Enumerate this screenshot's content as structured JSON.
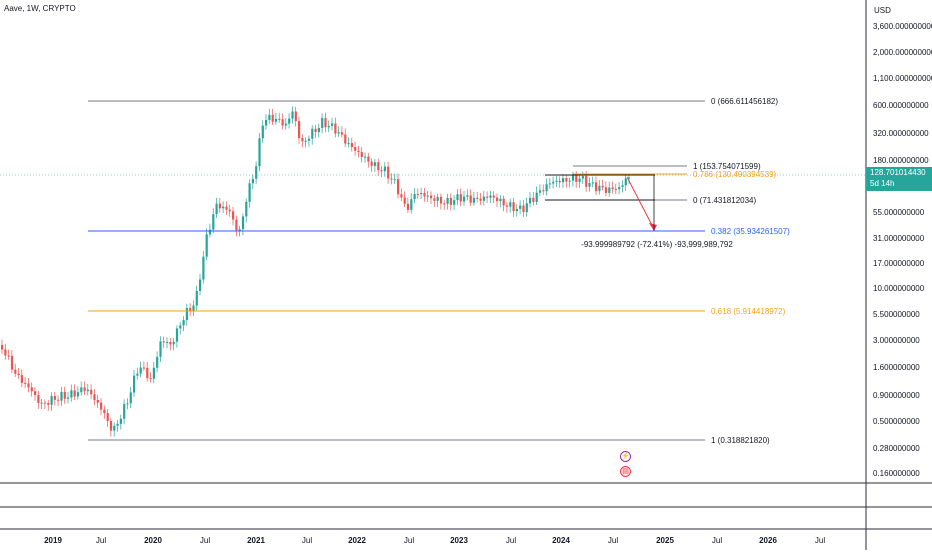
{
  "header": {
    "title": "Aave, 1W, CRYPTO",
    "currency": "USD"
  },
  "price_tag": {
    "value": "128.701014430",
    "countdown": "5d 14h"
  },
  "colors": {
    "up": "#26a69a",
    "down": "#ef5350",
    "fib_gray": "#787b86",
    "fib_orange": "#f7a21b",
    "fib_blue": "#2962ff",
    "arrow": "#f23645"
  },
  "price_axis": [
    "3,600.000000000",
    "2,000.000000000",
    "1,100.000000000",
    "600.000000000",
    "320.000000000",
    "180.000000000",
    "55.000000000",
    "31.000000000",
    "17.000000000",
    "10.000000000",
    "5.500000000",
    "3.000000000",
    "1.600000000",
    "0.900000000",
    "0.500000000",
    "0.280000000",
    "0.160000000"
  ],
  "time_axis": [
    "2019",
    "Jul",
    "2020",
    "Jul",
    "2021",
    "Jul",
    "2022",
    "Jul",
    "2023",
    "Jul",
    "2024",
    "Jul",
    "2025",
    "Jul",
    "2026",
    "Jul"
  ],
  "fib_levels": [
    {
      "label": "0 (666.611456182)",
      "color": "gray"
    },
    {
      "label": "1 (153.754071599)",
      "color": "gray"
    },
    {
      "label": "0.786 (130.490394539)",
      "color": "orange"
    },
    {
      "label": "0 (71.431812034)",
      "color": "gray"
    },
    {
      "label": "0.382 (35.934261507)",
      "color": "blue"
    },
    {
      "label": "0.618 (5.914418972)",
      "color": "orange"
    },
    {
      "label": "1 (0.318821820)",
      "color": "gray"
    }
  ],
  "measurement": {
    "label": "-93.999989792 (-72.41%) -93,999,989,792"
  },
  "icons": [
    "lightning-icon",
    "us-flag-icon"
  ]
}
